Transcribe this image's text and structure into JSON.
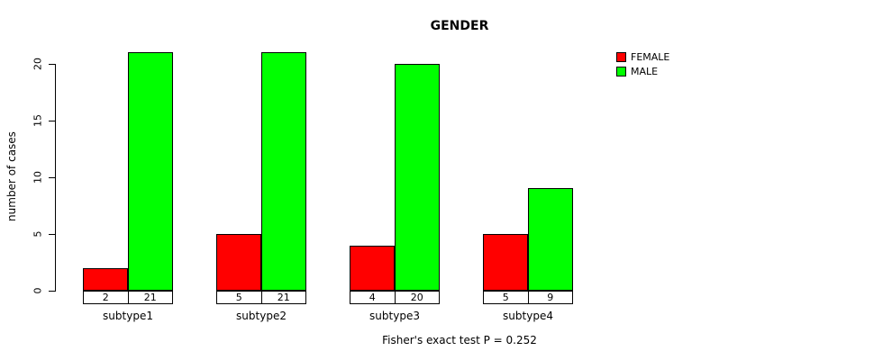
{
  "chart_data": {
    "type": "bar",
    "title": "GENDER",
    "ylabel": "number of cases",
    "xlabel": "",
    "caption": "Fisher's exact test P = 0.252",
    "categories": [
      "subtype1",
      "subtype2",
      "subtype3",
      "subtype4"
    ],
    "series": [
      {
        "name": "FEMALE",
        "color": "#FF0000",
        "values": [
          2,
          5,
          4,
          5
        ]
      },
      {
        "name": "MALE",
        "color": "#00FF00",
        "values": [
          21,
          21,
          20,
          9
        ]
      }
    ],
    "yticks": [
      0,
      5,
      10,
      15,
      20
    ],
    "ylim": [
      0,
      21
    ],
    "grid": false,
    "legend_position": "top-right",
    "bar_value_labels_shown": true
  }
}
